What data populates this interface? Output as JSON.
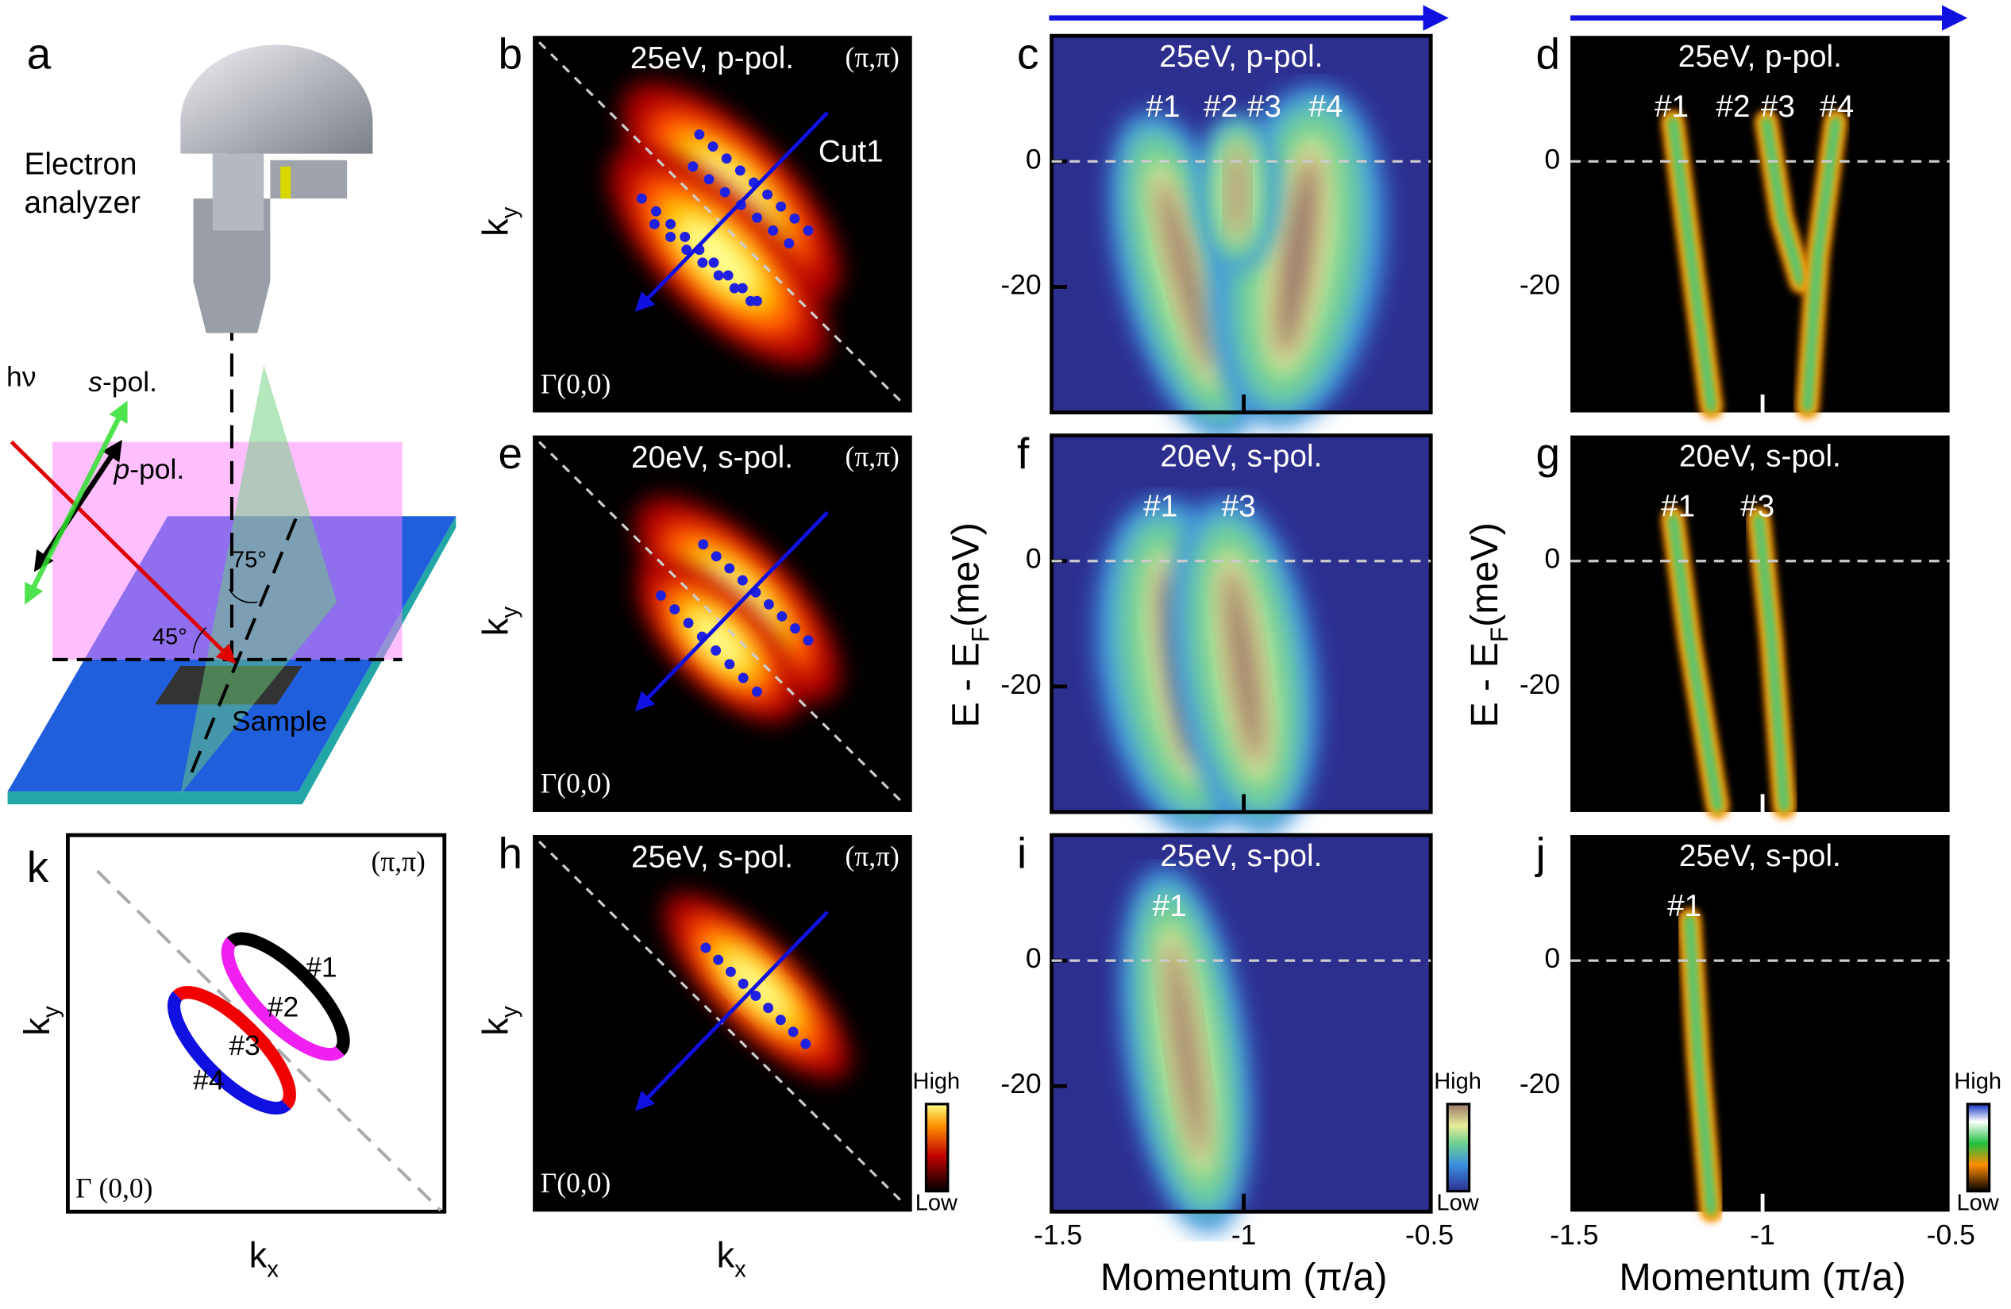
{
  "panel_a": {
    "label": "a",
    "analyzer": [
      "Electron",
      "analyzer"
    ],
    "hv": "hν",
    "s_pol": {
      "pol": "s",
      "suffix": "-pol."
    },
    "p_pol": {
      "pol": "p",
      "suffix": "-pol."
    },
    "angle_75": "75°",
    "angle_45": "45°",
    "sample": "Sample"
  },
  "fermi_surfaces": [
    {
      "label": "b",
      "energy": "25eV,",
      "pol": "p",
      "suffix": "-pol.",
      "corner": "(π,π)",
      "origin": "Γ(0,0)",
      "cut": "Cut1"
    },
    {
      "label": "e",
      "energy": "20eV,",
      "pol": "s",
      "suffix": "-pol.",
      "corner": "(π,π)",
      "origin": "Γ(0,0)"
    },
    {
      "label": "h",
      "energy": "25eV,",
      "pol": "s",
      "suffix": "-pol.",
      "corner": "(π,π)",
      "origin": "Γ(0,0)"
    }
  ],
  "spectra": [
    {
      "label": "c",
      "energy": "25eV,",
      "pol": "p",
      "suffix": "-pol.",
      "bands": [
        "#1",
        "#2",
        "#3",
        "#4"
      ]
    },
    {
      "label": "f",
      "energy": "20eV,",
      "pol": "s",
      "suffix": "-pol.",
      "bands": [
        "#1",
        "#3"
      ]
    },
    {
      "label": "i",
      "energy": "25eV,",
      "pol": "s",
      "suffix": "-pol.",
      "bands": [
        "#1"
      ]
    }
  ],
  "curvature": [
    {
      "label": "d",
      "energy": "25eV,",
      "pol": "p",
      "suffix": "-pol.",
      "bands": [
        "#1",
        "#2",
        "#3",
        "#4"
      ]
    },
    {
      "label": "g",
      "energy": "20eV,",
      "pol": "s",
      "suffix": "-pol.",
      "bands": [
        "#1",
        "#3"
      ]
    },
    {
      "label": "j",
      "energy": "25eV,",
      "pol": "s",
      "suffix": "-pol.",
      "bands": [
        "#1"
      ]
    }
  ],
  "panel_k": {
    "label": "k",
    "corner": "(π,π)",
    "origin": "Γ (0,0)",
    "bands": [
      "#1",
      "#2",
      "#3",
      "#4"
    ]
  },
  "axes": {
    "kx": {
      "main": "k",
      "sub": "x"
    },
    "ky": {
      "main": "k",
      "sub": "y"
    },
    "energy_label": {
      "main": "E - E",
      "sub": "F",
      "unit": "(meV)"
    },
    "energy_ticks": [
      "0",
      "-20"
    ],
    "momentum_label": "Momentum (π/a)",
    "momentum_ticks": [
      "-1.5",
      "-1",
      "-0.5"
    ]
  },
  "colorbar": {
    "high": "High",
    "low": "Low"
  }
}
